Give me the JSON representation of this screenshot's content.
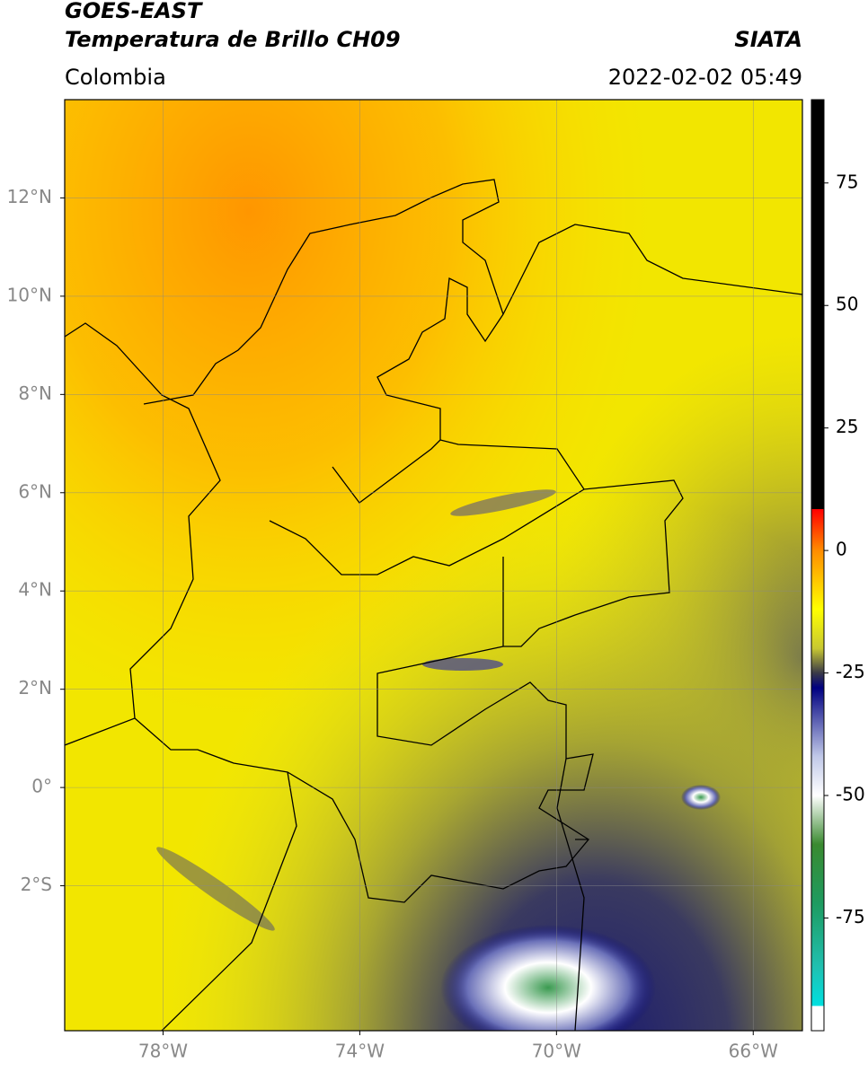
{
  "header": {
    "title": "GOES-EAST",
    "subtitle": "Temperatura de Brillo CH09",
    "region": "Colombia",
    "source": "SIATA",
    "datetime": "2022-02-02 05:49"
  },
  "map": {
    "type": "map",
    "xlim": [
      -80,
      -65
    ],
    "ylim": [
      -4.95,
      14
    ],
    "xticks": [
      {
        "value": -78,
        "label": "78°W"
      },
      {
        "value": -74,
        "label": "74°W"
      },
      {
        "value": -70,
        "label": "70°W"
      },
      {
        "value": -66,
        "label": "66°W"
      }
    ],
    "yticks": [
      {
        "value": 12,
        "label": "12°N"
      },
      {
        "value": 10,
        "label": "10°N"
      },
      {
        "value": 8,
        "label": "8°N"
      },
      {
        "value": 6,
        "label": "6°N"
      },
      {
        "value": 4,
        "label": "4°N"
      },
      {
        "value": 2,
        "label": "2°N"
      },
      {
        "value": 0,
        "label": "0°"
      },
      {
        "value": -2,
        "label": "2°S"
      }
    ],
    "grid": true
  },
  "colorbar": {
    "lim": [
      -98,
      92
    ],
    "ticks": [
      75,
      50,
      25,
      0,
      -25,
      -50,
      -75
    ],
    "stops": [
      {
        "value": 92,
        "color": "#000000"
      },
      {
        "value": 8.5,
        "color": "#000000"
      },
      {
        "value": 8.4,
        "color": "#ff0000"
      },
      {
        "value": 0,
        "color": "#ff8c00"
      },
      {
        "value": -12,
        "color": "#ffff00"
      },
      {
        "value": -20,
        "color": "#c8c832"
      },
      {
        "value": -25,
        "color": "#3a3a48"
      },
      {
        "value": -28,
        "color": "#000080"
      },
      {
        "value": -42,
        "color": "#c0c8e8"
      },
      {
        "value": -50,
        "color": "#ffffff"
      },
      {
        "value": -60,
        "color": "#3a8a30"
      },
      {
        "value": -72,
        "color": "#1e9b60"
      },
      {
        "value": -85,
        "color": "#20c0b0"
      },
      {
        "value": -92.9,
        "color": "#00e0e0"
      },
      {
        "value": -93,
        "color": "#ffffff"
      },
      {
        "value": -98,
        "color": "#ffffff"
      }
    ]
  }
}
